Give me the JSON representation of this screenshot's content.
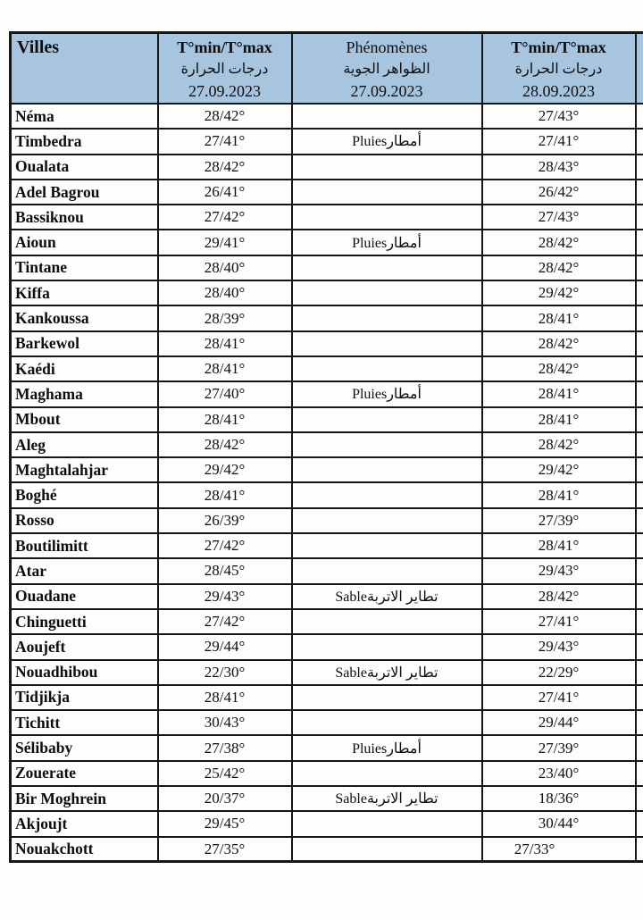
{
  "table": {
    "colors": {
      "header_bg": "#a8c5e0",
      "border": "#161616"
    },
    "header": {
      "villes": "Villes",
      "temp27": {
        "title": "T°min/T°max",
        "arabic": "درجات الحرارة",
        "date": "27.09.2023"
      },
      "phenomena": {
        "title": "Phénomènes",
        "arabic": "الظواهر الجوية",
        "date": "27.09.2023"
      },
      "temp28": {
        "title": "T°min/T°max",
        "arabic": "درجات الحرارة",
        "date": "28.09.2023"
      }
    },
    "phenomena_labels": {
      "rain": "Pluiesأمطار",
      "sand": "Sableتطاير الاتربة"
    },
    "rows": [
      {
        "ville": "Néma",
        "t27": "28/42°",
        "phen": "",
        "t28": "27/43°"
      },
      {
        "ville": "Timbedra",
        "t27": "27/41°",
        "phen": "Pluiesأمطار",
        "t28": "27/41°"
      },
      {
        "ville": "Oualata",
        "t27": "28/42°",
        "phen": "",
        "t28": "28/43°"
      },
      {
        "ville": "Adel Bagrou",
        "t27": "26/41°",
        "phen": "",
        "t28": "26/42°"
      },
      {
        "ville": "Bassiknou",
        "t27": "27/42°",
        "phen": "",
        "t28": "27/43°"
      },
      {
        "ville": "Aioun",
        "t27": "29/41°",
        "phen": "Pluiesأمطار",
        "t28": "28/42°"
      },
      {
        "ville": "Tintane",
        "t27": "28/40°",
        "phen": "",
        "t28": "28/42°"
      },
      {
        "ville": "Kiffa",
        "t27": "28/40°",
        "phen": "",
        "t28": "29/42°"
      },
      {
        "ville": "Kankoussa",
        "t27": "28/39°",
        "phen": "",
        "t28": "28/41°"
      },
      {
        "ville": "Barkewol",
        "t27": "28/41°",
        "phen": "",
        "t28": "28/42°"
      },
      {
        "ville": "Kaédi",
        "t27": "28/41°",
        "phen": "",
        "t28": "28/42°"
      },
      {
        "ville": "Maghama",
        "t27": "27/40°",
        "phen": "Pluiesأمطار",
        "t28": "28/41°"
      },
      {
        "ville": "Mbout",
        "t27": "28/41°",
        "phen": "",
        "t28": "28/41°"
      },
      {
        "ville": "Aleg",
        "t27": "28/42°",
        "phen": "",
        "t28": "28/42°"
      },
      {
        "ville": "Maghtalahjar",
        "t27": "29/42°",
        "phen": "",
        "t28": "29/42°"
      },
      {
        "ville": "Boghé",
        "t27": "28/41°",
        "phen": "",
        "t28": "28/41°"
      },
      {
        "ville": "Rosso",
        "t27": "26/39°",
        "phen": "",
        "t28": "27/39°"
      },
      {
        "ville": "Boutilimitt",
        "t27": "27/42°",
        "phen": "",
        "t28": "28/41°"
      },
      {
        "ville": "Atar",
        "t27": "28/45°",
        "phen": "",
        "t28": "29/43°"
      },
      {
        "ville": "Ouadane",
        "t27": "29/43°",
        "phen": "Sableتطاير الاتربة",
        "t28": "28/42°"
      },
      {
        "ville": "Chinguetti",
        "t27": "27/42°",
        "phen": "",
        "t28": "27/41°"
      },
      {
        "ville": "Aoujeft",
        "t27": "29/44°",
        "phen": "",
        "t28": "29/43°"
      },
      {
        "ville": "Nouadhibou",
        "t27": "22/30°",
        "phen": "Sableتطاير الاتربة",
        "t28": "22/29°"
      },
      {
        "ville": "Tidjikja",
        "t27": "28/41°",
        "phen": "",
        "t28": "27/41°"
      },
      {
        "ville": "Tichitt",
        "t27": "30/43°",
        "phen": "",
        "t28": "29/44°"
      },
      {
        "ville": "Sélibaby",
        "t27": "27/38°",
        "phen": "Pluiesأمطار",
        "t28": "27/39°"
      },
      {
        "ville": "Zouerate",
        "t27": "25/42°",
        "phen": "",
        "t28": "23/40°"
      },
      {
        "ville": "Bir Moghrein",
        "t27": "20/37°",
        "phen": "Sableتطاير الاتربة",
        "t28": "18/36°"
      },
      {
        "ville": "Akjoujt",
        "t27": "29/45°",
        "phen": "",
        "t28": "30/44°"
      },
      {
        "ville": "Nouakchott",
        "t27": "27/35°",
        "phen": "",
        "t28": "27/33°"
      }
    ]
  }
}
